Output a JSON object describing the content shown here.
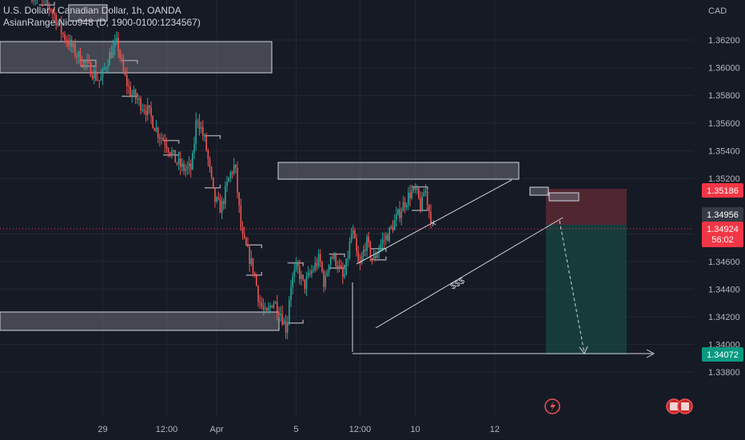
{
  "header": {
    "title": "U.S. Dollar / Canadian Dollar, 1h, OANDA",
    "indicator": "AsianRange Nico948 (D, 1900-0100:1234567)",
    "currency": "CAD"
  },
  "colors": {
    "background": "#161a25",
    "up": "#26a69a",
    "down": "#ef5350",
    "grid": "#232734",
    "zone_fill": "#6b6e78",
    "zone_border": "#d1d4dc",
    "stop_zone": "#5a2a33",
    "target_zone": "#17423f",
    "price_red": "#f23645",
    "price_green": "#089981",
    "price_grey": "#363a45",
    "step_line": "#9598a1"
  },
  "chart_data": {
    "type": "candlestick",
    "symbol": "USDCAD",
    "timeframe": "1h",
    "y_axis": {
      "ticks": [
        "1.36200",
        "1.36000",
        "1.35800",
        "1.35600",
        "1.35400",
        "1.35200",
        "1.34800",
        "1.34600",
        "1.34400",
        "1.34200",
        "1.34000",
        "1.33800"
      ],
      "range": [
        1.3368,
        1.364
      ]
    },
    "x_axis": {
      "ticks": [
        {
          "label": "29",
          "bar": 41
        },
        {
          "label": "12:00",
          "bar": 78
        },
        {
          "label": "Apr",
          "bar": 107
        },
        {
          "label": "5",
          "bar": 153
        },
        {
          "label": "12:00",
          "bar": 190
        },
        {
          "label": "10",
          "bar": 222
        },
        {
          "label": "12",
          "bar": 268
        }
      ]
    },
    "price_labels": {
      "stop": "1.35186",
      "current": "1.34956",
      "last": "1.34924",
      "countdown": "56:02",
      "target": "1.34072"
    },
    "annotations": {
      "channel_top_label": "x",
      "channel_bottom_label": "$$$"
    },
    "path": [
      [
        0,
        1.3654
      ],
      [
        12,
        1.3642
      ],
      [
        18,
        1.3625
      ],
      [
        26,
        1.361
      ],
      [
        35,
        1.3598
      ],
      [
        40,
        1.359
      ],
      [
        45,
        1.3608
      ],
      [
        50,
        1.3618
      ],
      [
        53,
        1.3598
      ],
      [
        57,
        1.3583
      ],
      [
        62,
        1.3576
      ],
      [
        68,
        1.3568
      ],
      [
        73,
        1.3554
      ],
      [
        78,
        1.3546
      ],
      [
        84,
        1.3532
      ],
      [
        88,
        1.3527
      ],
      [
        93,
        1.3527
      ],
      [
        96,
        1.3566
      ],
      [
        101,
        1.3545
      ],
      [
        106,
        1.3505
      ],
      [
        110,
        1.3498
      ],
      [
        115,
        1.3522
      ],
      [
        118,
        1.353
      ],
      [
        122,
        1.3478
      ],
      [
        125,
        1.3468
      ],
      [
        129,
        1.3453
      ],
      [
        132,
        1.3432
      ],
      [
        136,
        1.342
      ],
      [
        140,
        1.3432
      ],
      [
        144,
        1.3425
      ],
      [
        148,
        1.341
      ],
      [
        150,
        1.3442
      ],
      [
        154,
        1.3456
      ],
      [
        158,
        1.3442
      ],
      [
        163,
        1.3454
      ],
      [
        167,
        1.3462
      ],
      [
        170,
        1.3442
      ],
      [
        173,
        1.3465
      ],
      [
        177,
        1.346
      ],
      [
        181,
        1.3446
      ],
      [
        186,
        1.3483
      ],
      [
        190,
        1.3454
      ],
      [
        194,
        1.3475
      ],
      [
        198,
        1.346
      ],
      [
        202,
        1.3472
      ],
      [
        207,
        1.348
      ],
      [
        212,
        1.3492
      ],
      [
        216,
        1.3502
      ],
      [
        220,
        1.351
      ],
      [
        223,
        1.351
      ],
      [
        226,
        1.3498
      ],
      [
        228,
        1.3514
      ],
      [
        231,
        1.3493
      ]
    ]
  }
}
